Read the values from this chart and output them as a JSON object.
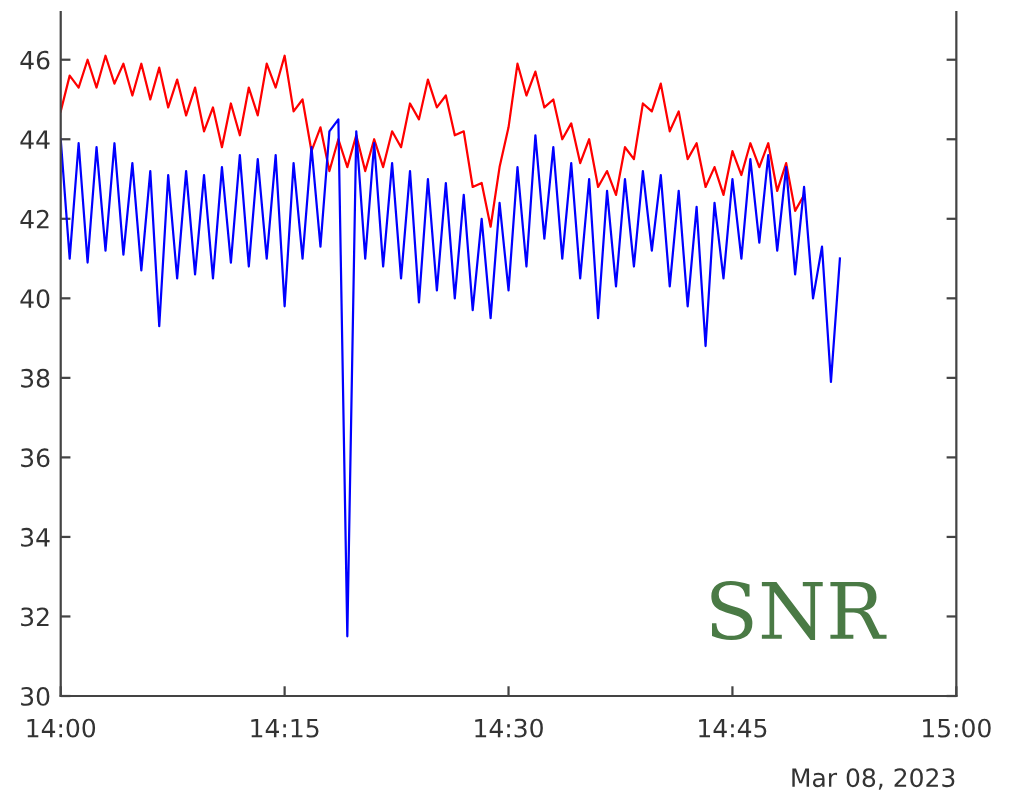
{
  "chart_data": {
    "type": "line",
    "xlim": [
      14.0,
      15.0
    ],
    "xticks": [
      {
        "value": 14.0,
        "label": "14:00"
      },
      {
        "value": 14.25,
        "label": "14:15"
      },
      {
        "value": 14.5,
        "label": "14:30"
      },
      {
        "value": 14.75,
        "label": "14:45"
      },
      {
        "value": 15.0,
        "label": "15:00"
      }
    ],
    "ylim": [
      30,
      47.2
    ],
    "yticks": [
      30,
      32,
      34,
      36,
      38,
      40,
      42,
      44,
      46
    ],
    "marker": "none",
    "line_style": "solid",
    "annotations": [
      "Mar 08, 2023",
      "SNR"
    ],
    "series": [
      {
        "color": "#ff0000",
        "x": [
          14.0,
          14.01,
          14.02,
          14.03,
          14.04,
          14.05,
          14.06,
          14.07,
          14.08,
          14.09,
          14.1,
          14.11,
          14.12,
          14.13,
          14.14,
          14.15,
          14.16,
          14.17,
          14.18,
          14.19,
          14.2,
          14.21,
          14.22,
          14.23,
          14.24,
          14.25,
          14.26,
          14.27,
          14.28,
          14.29,
          14.3,
          14.31,
          14.32,
          14.33,
          14.34,
          14.35,
          14.36,
          14.37,
          14.38,
          14.39,
          14.4,
          14.41,
          14.42,
          14.43,
          14.44,
          14.45,
          14.46,
          14.47,
          14.48,
          14.49,
          14.5,
          14.51,
          14.52,
          14.53,
          14.54,
          14.55,
          14.56,
          14.57,
          14.58,
          14.59,
          14.6,
          14.61,
          14.62,
          14.63,
          14.64,
          14.65,
          14.66,
          14.67,
          14.68,
          14.69,
          14.7,
          14.71,
          14.72,
          14.73,
          14.74,
          14.75,
          14.76,
          14.77,
          14.78,
          14.79,
          14.8,
          14.81,
          14.82,
          14.83
        ],
        "values": [
          44.7,
          45.6,
          45.3,
          46.0,
          45.3,
          46.1,
          45.4,
          45.9,
          45.1,
          45.9,
          45.0,
          45.8,
          44.8,
          45.5,
          44.6,
          45.3,
          44.2,
          44.8,
          43.8,
          44.9,
          44.1,
          45.3,
          44.6,
          45.9,
          45.3,
          46.1,
          44.7,
          45.0,
          43.7,
          44.3,
          43.2,
          44.0,
          43.3,
          44.1,
          43.2,
          44.0,
          43.3,
          44.2,
          43.8,
          44.9,
          44.5,
          45.5,
          44.8,
          45.1,
          44.1,
          44.2,
          42.8,
          42.9,
          41.8,
          43.3,
          44.3,
          45.9,
          45.1,
          45.7,
          44.8,
          45.0,
          44.0,
          44.4,
          43.4,
          44.0,
          42.8,
          43.2,
          42.6,
          43.8,
          43.5,
          44.9,
          44.7,
          45.4,
          44.2,
          44.7,
          43.5,
          43.9,
          42.8,
          43.3,
          42.6,
          43.7,
          43.1,
          43.9,
          43.3,
          43.9,
          42.7,
          43.4,
          42.2,
          42.6
        ]
      },
      {
        "color": "#0000ff",
        "x": [
          14.0,
          14.01,
          14.02,
          14.03,
          14.04,
          14.05,
          14.06,
          14.07,
          14.08,
          14.09,
          14.1,
          14.11,
          14.12,
          14.13,
          14.14,
          14.15,
          14.16,
          14.17,
          14.18,
          14.19,
          14.2,
          14.21,
          14.22,
          14.23,
          14.24,
          14.25,
          14.26,
          14.27,
          14.28,
          14.29,
          14.3,
          14.31,
          14.32,
          14.33,
          14.34,
          14.35,
          14.36,
          14.37,
          14.38,
          14.39,
          14.4,
          14.41,
          14.42,
          14.43,
          14.44,
          14.45,
          14.46,
          14.47,
          14.48,
          14.49,
          14.5,
          14.51,
          14.52,
          14.53,
          14.54,
          14.55,
          14.56,
          14.57,
          14.58,
          14.59,
          14.6,
          14.61,
          14.62,
          14.63,
          14.64,
          14.65,
          14.66,
          14.67,
          14.68,
          14.69,
          14.7,
          14.71,
          14.72,
          14.73,
          14.74,
          14.75,
          14.76,
          14.77,
          14.78,
          14.79,
          14.8,
          14.81,
          14.82,
          14.83,
          14.84,
          14.85,
          14.86,
          14.87
        ],
        "values": [
          44.0,
          41.0,
          43.9,
          40.9,
          43.8,
          41.2,
          43.9,
          41.1,
          43.4,
          40.7,
          43.2,
          39.3,
          43.1,
          40.5,
          43.2,
          40.6,
          43.1,
          40.5,
          43.3,
          40.9,
          43.6,
          40.8,
          43.5,
          41.0,
          43.6,
          39.8,
          43.4,
          41.0,
          43.8,
          41.3,
          44.2,
          44.5,
          31.5,
          44.2,
          41.0,
          43.9,
          40.8,
          43.4,
          40.5,
          43.2,
          39.9,
          43.0,
          40.2,
          42.9,
          40.0,
          42.6,
          39.7,
          42.0,
          39.5,
          42.4,
          40.2,
          43.3,
          40.8,
          44.1,
          41.5,
          43.8,
          41.0,
          43.4,
          40.5,
          43.0,
          39.5,
          42.7,
          40.3,
          43.0,
          40.8,
          43.2,
          41.2,
          43.1,
          40.3,
          42.7,
          39.8,
          42.3,
          38.8,
          42.4,
          40.5,
          43.0,
          41.0,
          43.5,
          41.4,
          43.6,
          41.2,
          43.3,
          40.6,
          42.8,
          40.0,
          41.3,
          37.9,
          41.0
        ]
      }
    ]
  }
}
